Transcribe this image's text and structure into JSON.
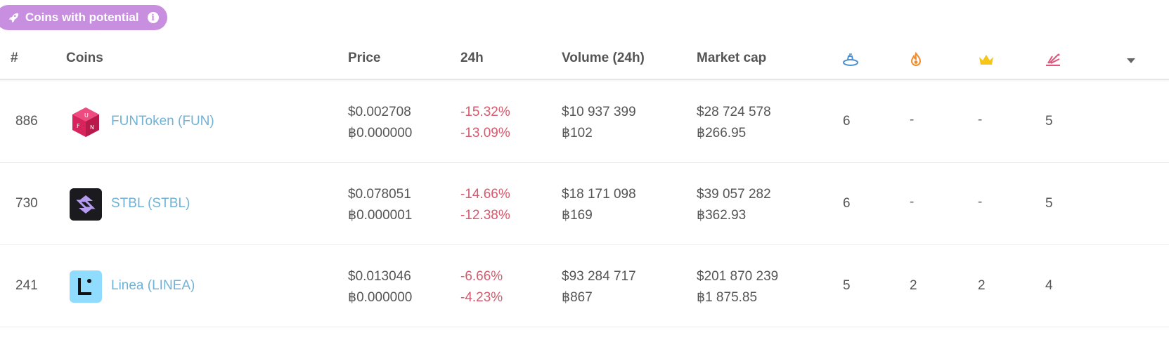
{
  "badge": {
    "label": "Coins with potential",
    "info_glyph": "i",
    "color": "#c88ee0"
  },
  "columns": {
    "rank": "#",
    "coins": "Coins",
    "price": "Price",
    "change": "24h",
    "volume": "Volume (24h)",
    "market_cap": "Market cap",
    "icons": [
      "submarine-icon",
      "fire-icon",
      "crown-icon",
      "sparkle-icon"
    ]
  },
  "rows": [
    {
      "rank": "886",
      "name": "FUNToken (FUN)",
      "price_usd": "$0.002708",
      "price_btc": "฿0.000000",
      "change_usd": "-15.32%",
      "change_btc": "-13.09%",
      "volume_usd": "$10 937 399",
      "volume_btc": "฿102",
      "mcap_usd": "$28 724 578",
      "mcap_btc": "฿266.95",
      "c1": "6",
      "c2": "-",
      "c3": "-",
      "c4": "5"
    },
    {
      "rank": "730",
      "name": "STBL (STBL)",
      "price_usd": "$0.078051",
      "price_btc": "฿0.000001",
      "change_usd": "-14.66%",
      "change_btc": "-12.38%",
      "volume_usd": "$18 171 098",
      "volume_btc": "฿169",
      "mcap_usd": "$39 057 282",
      "mcap_btc": "฿362.93",
      "c1": "6",
      "c2": "-",
      "c3": "-",
      "c4": "5"
    },
    {
      "rank": "241",
      "name": "Linea (LINEA)",
      "price_usd": "$0.013046",
      "price_btc": "฿0.000000",
      "change_usd": "-6.66%",
      "change_btc": "-4.23%",
      "volume_usd": "$93 284 717",
      "volume_btc": "฿867",
      "mcap_usd": "$201 870 239",
      "mcap_btc": "฿1 875.85",
      "c1": "5",
      "c2": "2",
      "c3": "2",
      "c4": "4"
    }
  ],
  "colors": {
    "link": "#6fb2d6",
    "negative": "#d55a6e"
  }
}
